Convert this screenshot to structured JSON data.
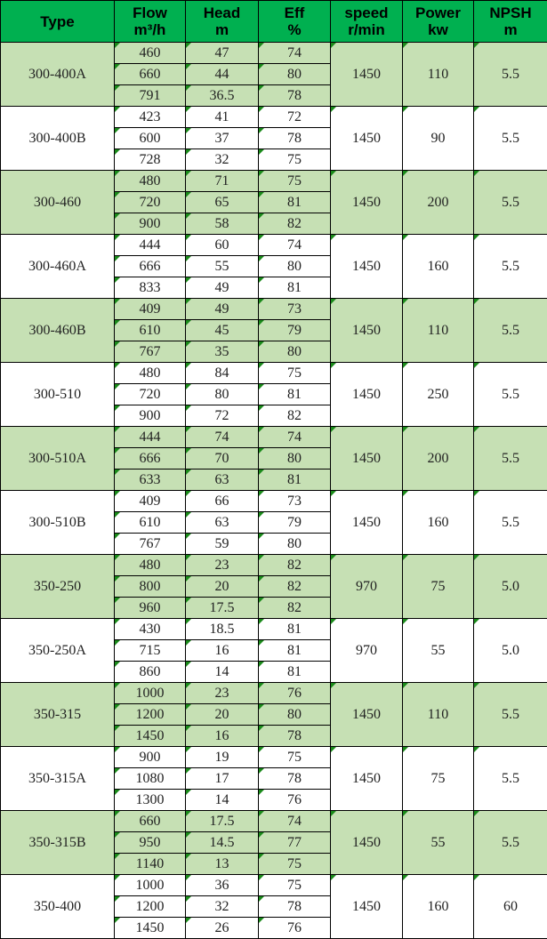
{
  "headers": [
    {
      "l1": "Type",
      "l2": ""
    },
    {
      "l1": "Flow",
      "l2": "m³/h"
    },
    {
      "l1": "Head",
      "l2": "m"
    },
    {
      "l1": "Eff",
      "l2": "%"
    },
    {
      "l1": "speed",
      "l2": "r/min"
    },
    {
      "l1": "Power",
      "l2": "kw"
    },
    {
      "l1": "NPSH",
      "l2": "m"
    }
  ],
  "colors": {
    "header": "#00b050",
    "band": "#c6e0b4",
    "marker": "#1a8a1a"
  },
  "groups": [
    {
      "type": "300-400A",
      "rows": [
        [
          "460",
          "47",
          "74"
        ],
        [
          "660",
          "44",
          "80"
        ],
        [
          "791",
          "36.5",
          "78"
        ]
      ],
      "speed": "1450",
      "power": "110",
      "npsh": "5.5"
    },
    {
      "type": "300-400B",
      "rows": [
        [
          "423",
          "41",
          "72"
        ],
        [
          "600",
          "37",
          "78"
        ],
        [
          "728",
          "32",
          "75"
        ]
      ],
      "speed": "1450",
      "power": "90",
      "npsh": "5.5"
    },
    {
      "type": "300-460",
      "rows": [
        [
          "480",
          "71",
          "75"
        ],
        [
          "720",
          "65",
          "81"
        ],
        [
          "900",
          "58",
          "82"
        ]
      ],
      "speed": "1450",
      "power": "200",
      "npsh": "5.5"
    },
    {
      "type": "300-460A",
      "rows": [
        [
          "444",
          "60",
          "74"
        ],
        [
          "666",
          "55",
          "80"
        ],
        [
          "833",
          "49",
          "81"
        ]
      ],
      "speed": "1450",
      "power": "160",
      "npsh": "5.5"
    },
    {
      "type": "300-460B",
      "rows": [
        [
          "409",
          "49",
          "73"
        ],
        [
          "610",
          "45",
          "79"
        ],
        [
          "767",
          "35",
          "80"
        ]
      ],
      "speed": "1450",
      "power": "110",
      "npsh": "5.5"
    },
    {
      "type": "300-510",
      "rows": [
        [
          "480",
          "84",
          "75"
        ],
        [
          "720",
          "80",
          "81"
        ],
        [
          "900",
          "72",
          "82"
        ]
      ],
      "speed": "1450",
      "power": "250",
      "npsh": "5.5"
    },
    {
      "type": "300-510A",
      "rows": [
        [
          "444",
          "74",
          "74"
        ],
        [
          "666",
          "70",
          "80"
        ],
        [
          "633",
          "63",
          "81"
        ]
      ],
      "speed": "1450",
      "power": "200",
      "npsh": "5.5"
    },
    {
      "type": "300-510B",
      "rows": [
        [
          "409",
          "66",
          "73"
        ],
        [
          "610",
          "63",
          "79"
        ],
        [
          "767",
          "59",
          "80"
        ]
      ],
      "speed": "1450",
      "power": "160",
      "npsh": "5.5"
    },
    {
      "type": "350-250",
      "rows": [
        [
          "480",
          "23",
          "82"
        ],
        [
          "800",
          "20",
          "82"
        ],
        [
          "960",
          "17.5",
          "82"
        ]
      ],
      "speed": "970",
      "power": "75",
      "npsh": "5.0"
    },
    {
      "type": "350-250A",
      "rows": [
        [
          "430",
          "18.5",
          "81"
        ],
        [
          "715",
          "16",
          "81"
        ],
        [
          "860",
          "14",
          "81"
        ]
      ],
      "speed": "970",
      "power": "55",
      "npsh": "5.0"
    },
    {
      "type": "350-315",
      "rows": [
        [
          "1000",
          "23",
          "76"
        ],
        [
          "1200",
          "20",
          "80"
        ],
        [
          "1450",
          "16",
          "78"
        ]
      ],
      "speed": "1450",
      "power": "110",
      "npsh": "5.5"
    },
    {
      "type": "350-315A",
      "rows": [
        [
          "900",
          "19",
          "75"
        ],
        [
          "1080",
          "17",
          "78"
        ],
        [
          "1300",
          "14",
          "76"
        ]
      ],
      "speed": "1450",
      "power": "75",
      "npsh": "5.5"
    },
    {
      "type": "350-315B",
      "rows": [
        [
          "660",
          "17.5",
          "74"
        ],
        [
          "950",
          "14.5",
          "77"
        ],
        [
          "1140",
          "13",
          "75"
        ]
      ],
      "speed": "1450",
      "power": "55",
      "npsh": "5.5"
    },
    {
      "type": "350-400",
      "rows": [
        [
          "1000",
          "36",
          "75"
        ],
        [
          "1200",
          "32",
          "78"
        ],
        [
          "1450",
          "26",
          "76"
        ]
      ],
      "speed": "1450",
      "power": "160",
      "npsh": "60"
    }
  ]
}
